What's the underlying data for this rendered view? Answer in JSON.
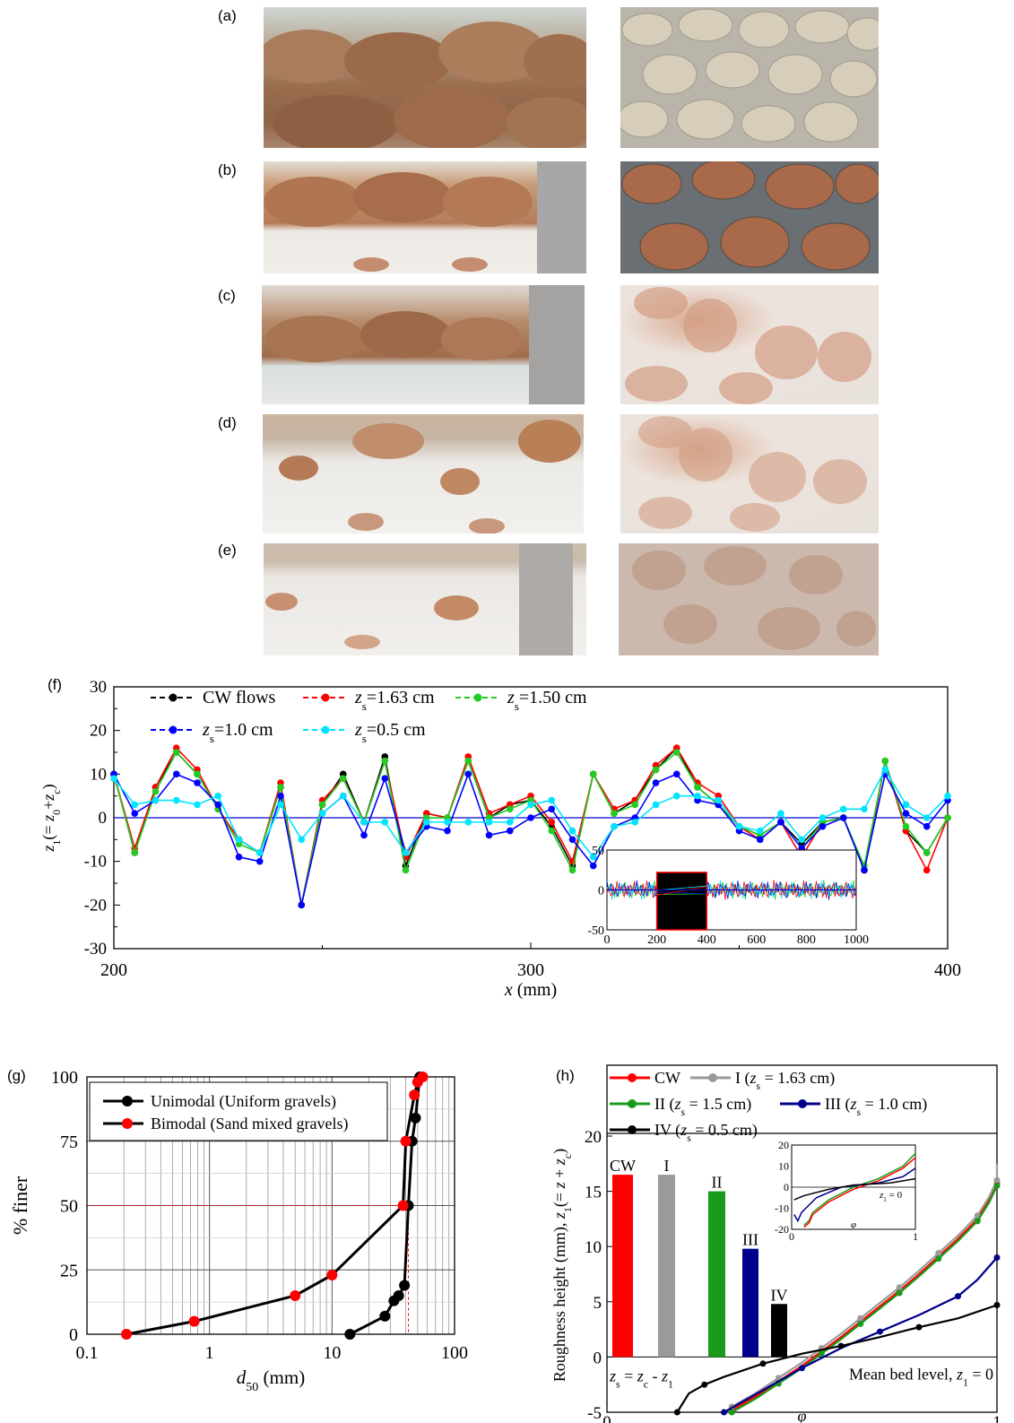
{
  "panels": {
    "a": "(a)",
    "b": "(b)",
    "c": "(c)",
    "d": "(d)",
    "e": "(e)",
    "f": "(f)",
    "g": "(g)",
    "h": "(h)"
  },
  "colors": {
    "cw": "#ff0000",
    "zs163": "#9a9a9a",
    "zs150": "#1a9a1a",
    "zs10": "#00008b",
    "zs05": "#000000",
    "f_cw": "#000000",
    "f_163": "#ff0000",
    "f_150": "#22cc22",
    "f_10": "#0000ff",
    "f_05": "#00e5ff"
  },
  "chart_data": [
    {
      "id": "f",
      "type": "line",
      "xlabel": "x (mm)",
      "ylabel": "z1(=z0+zc)",
      "xlim": [
        200,
        400
      ],
      "ylim": [
        -30,
        30
      ],
      "xticks": [
        "200",
        "300",
        "400"
      ],
      "yticks": [
        "-30",
        "-20",
        "-10",
        "0",
        "10",
        "20",
        "30"
      ],
      "legend": {
        "row1": [
          "CW flows",
          "zs=1.63 cm",
          "zs=1.50 cm"
        ],
        "row2": [
          "zs=1.0 cm",
          "zs=0.5 cm"
        ]
      },
      "x": [
        200,
        205,
        210,
        215,
        220,
        225,
        230,
        235,
        240,
        245,
        250,
        255,
        260,
        265,
        270,
        275,
        280,
        285,
        290,
        295,
        300,
        305,
        310,
        315,
        320,
        325,
        330,
        335,
        340,
        345,
        350,
        355,
        360,
        365,
        370,
        375,
        380,
        385,
        390,
        395,
        400
      ],
      "series": [
        {
          "name": "CW flows",
          "values": [
            10,
            -8,
            7,
            15,
            10,
            2,
            -5,
            -8,
            7,
            -20,
            3,
            10,
            -1,
            14,
            -11,
            1,
            0,
            13,
            0,
            3,
            4,
            -2,
            -11,
            10,
            1,
            4,
            11,
            16,
            7,
            3,
            -2,
            -4,
            -1,
            -6,
            -1,
            0,
            -12,
            13,
            -3,
            -8,
            0
          ]
        },
        {
          "name": "zs=1.63 cm",
          "values": [
            10,
            -7,
            7,
            16,
            11,
            2,
            -5,
            -8,
            8,
            -20,
            4,
            9,
            -1,
            13,
            -9,
            1,
            0,
            14,
            1,
            3,
            5,
            -1,
            -10,
            10,
            2,
            4,
            12,
            16,
            8,
            5,
            -2,
            -5,
            -1,
            -9,
            -1,
            0,
            -12,
            13,
            -3,
            -12,
            0
          ]
        },
        {
          "name": "zs=1.50 cm",
          "values": [
            10,
            -8,
            6,
            15,
            10,
            2,
            -6,
            -8,
            7,
            -20,
            3,
            9,
            -1,
            13,
            -12,
            0,
            0,
            13,
            0,
            2,
            4,
            -3,
            -12,
            10,
            1,
            3,
            11,
            15,
            7,
            3,
            -2,
            -4,
            -1,
            -7,
            -1,
            0,
            -11,
            13,
            -2,
            -8,
            0
          ]
        },
        {
          "name": "zs=1.0 cm",
          "values": [
            10,
            1,
            4,
            10,
            8,
            3,
            -9,
            -10,
            5,
            -20,
            1,
            5,
            -4,
            9,
            -8,
            -2,
            -3,
            10,
            -4,
            -3,
            0,
            2,
            -5,
            -11,
            -2,
            0,
            8,
            10,
            4,
            3,
            -3,
            -5,
            -1,
            -7,
            -2,
            0,
            -12,
            10,
            1,
            -2,
            4
          ]
        },
        {
          "name": "zs=0.5 cm",
          "values": [
            9,
            3,
            4,
            4,
            3,
            5,
            -5,
            -8,
            3,
            -5,
            1,
            5,
            -1,
            -1,
            -8,
            -1,
            -1,
            -1,
            -1,
            -1,
            3,
            4,
            -3,
            -9,
            -2,
            -1,
            3,
            5,
            5,
            4,
            -2,
            -3,
            1,
            -5,
            0,
            2,
            2,
            11,
            3,
            0,
            5
          ]
        }
      ],
      "inset": {
        "xlim": [
          0,
          1000
        ],
        "ylim": [
          -50,
          50
        ],
        "xticks": [
          "0",
          "200",
          "400",
          "600",
          "800",
          "1000"
        ],
        "yticks": [
          "-50",
          "0",
          "50"
        ],
        "highlight": [
          200,
          400
        ]
      }
    },
    {
      "id": "g",
      "type": "line",
      "xlabel": "d50 (mm)",
      "ylabel": "% finer",
      "xscale": "log",
      "xlim": [
        0.1,
        100
      ],
      "ylim": [
        0,
        100
      ],
      "xticks": [
        "0.1",
        "1",
        "10",
        "100"
      ],
      "yticks": [
        "0",
        "25",
        "50",
        "75",
        "100"
      ],
      "series": [
        {
          "name": "Unimodal (Uniform gravels)",
          "x": [
            14,
            27,
            32,
            35,
            39,
            42,
            45,
            48,
            52
          ],
          "y": [
            0,
            7,
            13,
            15,
            19,
            50,
            75,
            84,
            100
          ]
        },
        {
          "name": "Bimodal (Sand mixed gravels)",
          "x": [
            0.21,
            0.75,
            5,
            10,
            38,
            40,
            47,
            50,
            55
          ],
          "y": [
            0,
            5,
            15,
            23,
            50,
            75,
            93,
            98,
            100
          ]
        }
      ]
    },
    {
      "id": "h",
      "type": "bar",
      "xlabel": "φ",
      "ylabel": "Roughness height (mm), z1(=z+zc)",
      "xlim": [
        0,
        1
      ],
      "ylim": [
        -5,
        20
      ],
      "xticks": [
        "0",
        "1"
      ],
      "yticks": [
        "-5",
        "0",
        "5",
        "10",
        "15",
        "20"
      ],
      "categories": [
        "CW",
        "I",
        "II",
        "III",
        "IV"
      ],
      "values": [
        16.5,
        16.5,
        15,
        9.8,
        4.8
      ],
      "legend": {
        "row1": [
          "CW",
          "I (zs = 1.63 cm)"
        ],
        "row2": [
          "II (zs = 1.5 cm)",
          "III (zs = 1.0 cm)"
        ],
        "row3": [
          "IV (zs = 0.5 cm)"
        ]
      },
      "annotations": [
        "zs = zc - z1",
        "Mean bed level, z1 = 0"
      ],
      "inset": {
        "yticks": [
          "-20",
          "-10",
          "0",
          "10",
          "20"
        ],
        "xticks": [
          "0",
          "1"
        ],
        "xlabel": "φ",
        "label": "z1 = 0"
      }
    }
  ]
}
